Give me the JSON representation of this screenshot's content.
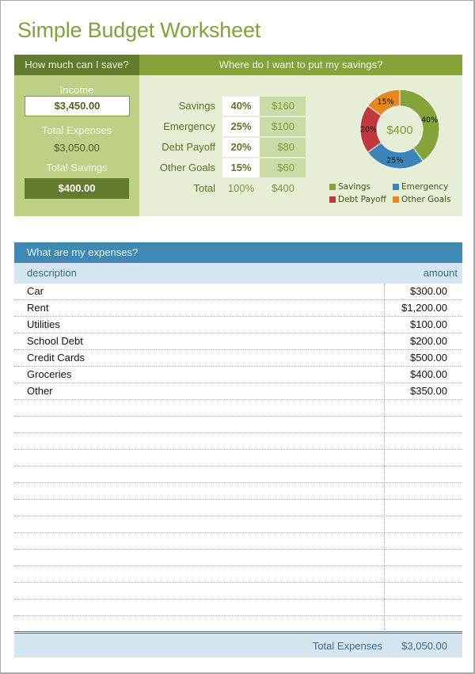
{
  "title": "Simple Budget Worksheet",
  "colors": {
    "title": "#7fa23a",
    "dark_green": "#637b2d",
    "mid_green": "#86a33a",
    "light_green_panel": "#bdd086",
    "pale_green_panel": "#e6eed6",
    "blue_header": "#4189b5",
    "blue_light": "#d6e6f1",
    "savings": "#86a33a",
    "emergency": "#3d85b8",
    "debt_payoff": "#c0393d",
    "other_goals": "#e8861f"
  },
  "save_section": {
    "header": "How much can I save?",
    "income_label": "Income",
    "income_value": "$3,450.00",
    "total_expenses_label": "Total Expenses",
    "total_expenses_value": "$3,050.00",
    "total_savings_label": "Total Savings",
    "total_savings_value": "$400.00"
  },
  "allocation_section": {
    "header": "Where do I want to put my savings?",
    "rows": [
      {
        "name": "Savings",
        "percent": "40%",
        "amount": "$160"
      },
      {
        "name": "Emergency",
        "percent": "25%",
        "amount": "$100"
      },
      {
        "name": "Debt Payoff",
        "percent": "20%",
        "amount": "$80"
      },
      {
        "name": "Other Goals",
        "percent": "15%",
        "amount": "$60"
      }
    ],
    "total": {
      "name": "Total",
      "percent": "100%",
      "amount": "$400"
    }
  },
  "chart_data": {
    "type": "pie",
    "subtype": "donut",
    "center_label": "$400",
    "categories": [
      "Savings",
      "Emergency",
      "Debt Payoff",
      "Other Goals"
    ],
    "values": [
      40,
      25,
      20,
      15
    ],
    "labels": [
      "40%",
      "25%",
      "20%",
      "15%"
    ],
    "colors": [
      "#86a33a",
      "#3d85b8",
      "#c0393d",
      "#e8861f"
    ],
    "legend_position": "bottom"
  },
  "expenses_section": {
    "header": "What are my expenses?",
    "columns": {
      "description": "description",
      "amount": "amount"
    },
    "rows": [
      {
        "description": "Car",
        "amount": "$300.00"
      },
      {
        "description": "Rent",
        "amount": "$1,200.00"
      },
      {
        "description": "Utilities",
        "amount": "$100.00"
      },
      {
        "description": "School Debt",
        "amount": "$200.00"
      },
      {
        "description": "Credit Cards",
        "amount": "$500.00"
      },
      {
        "description": "Groceries",
        "amount": "$400.00"
      },
      {
        "description": "Other",
        "amount": "$350.00"
      }
    ],
    "empty_rows": 14,
    "footer": {
      "label": "Total Expenses",
      "value": "$3,050.00"
    }
  }
}
